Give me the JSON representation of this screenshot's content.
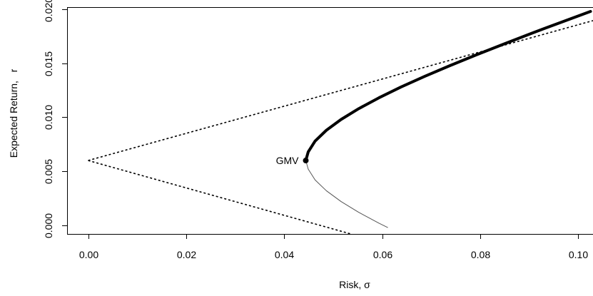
{
  "chart_data": {
    "type": "line",
    "title": "",
    "xlabel": "Risk, σ",
    "ylabel": "Expected Return,   r",
    "xlim": [
      -0.0043,
      0.103
    ],
    "ylim": [
      -0.0008,
      0.0202
    ],
    "x_ticks": [
      0.0,
      0.02,
      0.04,
      0.06,
      0.08,
      0.1
    ],
    "x_tick_labels": [
      "0.00",
      "0.02",
      "0.04",
      "0.06",
      "0.08",
      "0.10"
    ],
    "y_ticks": [
      0.0,
      0.005,
      0.01,
      0.015,
      0.02
    ],
    "y_tick_labels": [
      "0.000",
      "0.005",
      "0.010",
      "0.015",
      "0.020"
    ],
    "grid": false,
    "legend": "none",
    "gmv": {
      "x": 0.0444,
      "y": 0.006,
      "label": "GMV"
    },
    "series": [
      {
        "style": "thick-solid",
        "color": "#000000",
        "points": [
          [
            0.0444,
            0.006
          ],
          [
            0.0449,
            0.0068
          ],
          [
            0.0463,
            0.0078
          ],
          [
            0.0486,
            0.0088
          ],
          [
            0.0516,
            0.0098
          ],
          [
            0.0552,
            0.0108
          ],
          [
            0.0593,
            0.0118
          ],
          [
            0.0638,
            0.0128
          ],
          [
            0.0687,
            0.0138
          ],
          [
            0.0739,
            0.0148
          ],
          [
            0.0793,
            0.0158
          ],
          [
            0.0849,
            0.0168
          ],
          [
            0.0906,
            0.0178
          ],
          [
            0.0965,
            0.0188
          ],
          [
            0.1025,
            0.0198
          ]
        ]
      },
      {
        "style": "thin-solid",
        "color": "#555555",
        "points": [
          [
            0.0444,
            0.006
          ],
          [
            0.0449,
            0.0052
          ],
          [
            0.0463,
            0.0042
          ],
          [
            0.0486,
            0.0032
          ],
          [
            0.0516,
            0.0022
          ],
          [
            0.0552,
            0.0012
          ],
          [
            0.0593,
            0.0002
          ],
          [
            0.0611,
            -0.0002
          ]
        ]
      },
      {
        "style": "dotted",
        "color": "#000000",
        "points": [
          [
            0.0,
            0.006
          ],
          [
            0.103,
            0.01895
          ]
        ]
      },
      {
        "style": "dotted",
        "color": "#000000",
        "points": [
          [
            0.0,
            0.006
          ],
          [
            0.0536,
            -0.0008
          ]
        ]
      }
    ]
  }
}
